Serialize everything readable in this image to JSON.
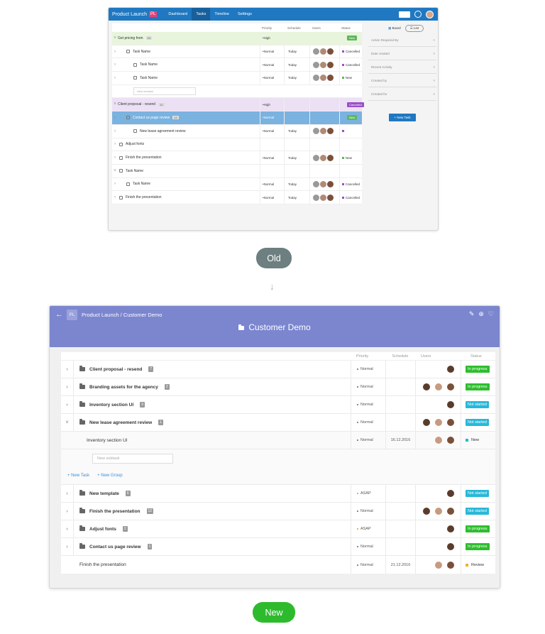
{
  "old": {
    "title": "Product Launch",
    "pl": "PL",
    "nav": [
      "Dashboard",
      "Tasks",
      "Timeline",
      "Settings"
    ],
    "columns": [
      "Priority",
      "Schedule",
      "Users",
      "Status"
    ],
    "side": {
      "board": "Board",
      "list": "List",
      "filters": [
        "Action Required By",
        "Date created",
        "Recent Activity",
        "Created by",
        "Created for"
      ],
      "new_task": "New Task"
    },
    "subtask_placeholder": "New subtask",
    "rows": [
      {
        "name": "Get pricing from",
        "count": "10",
        "priority": "High",
        "schedule": "",
        "status": "New",
        "style": "green",
        "level": 0
      },
      {
        "name": "Task Name",
        "priority": "Normal",
        "schedule": "Today",
        "status": "Cancelled",
        "level": 1
      },
      {
        "name": "Task Name",
        "priority": "Normal",
        "schedule": "Today",
        "status": "Cancelled",
        "level": 2
      },
      {
        "name": "Task Name",
        "priority": "Normal",
        "schedule": "Today",
        "status": "New",
        "level": 2
      },
      {
        "name": "Client proposal - resend",
        "count": "12",
        "priority": "High",
        "schedule": "",
        "status": "Cancelled",
        "style": "purple",
        "level": 0
      },
      {
        "name": "Contact us page review",
        "count": "12",
        "priority": "Normal",
        "schedule": "",
        "status": "New",
        "style": "blue",
        "level": 1
      },
      {
        "name": "New lease agreement review",
        "priority": "Normal",
        "schedule": "Today",
        "status": "",
        "level": 2
      },
      {
        "name": "Adjust fonts",
        "priority": "",
        "schedule": "",
        "status": "",
        "level": 0
      },
      {
        "name": "Finish the presentation",
        "priority": "Normal",
        "schedule": "Today",
        "status": "New",
        "level": 0
      },
      {
        "name": "Task Name",
        "priority": "",
        "schedule": "",
        "status": "",
        "level": 0
      },
      {
        "name": "Task Name",
        "priority": "Normal",
        "schedule": "Today",
        "status": "Cancelled",
        "level": 1
      },
      {
        "name": "Finish the presentation",
        "priority": "Normal",
        "schedule": "Today",
        "status": "Cancelled",
        "level": 0
      }
    ]
  },
  "labels": {
    "old": "Old",
    "new": "New"
  },
  "new": {
    "breadcrumb_project": "Product Launch",
    "breadcrumb_sep": "/",
    "breadcrumb_page": "Customer Demo",
    "pl": "PL",
    "title": "Customer Demo",
    "columns": [
      "Priority",
      "Schedule",
      "Users",
      "Status"
    ],
    "subtask_placeholder": "New subtask",
    "add_task": "+ New Task",
    "add_group": "+ New Group",
    "rows_top": [
      {
        "name": "Client proposal - resend",
        "count": "7",
        "priority": "Normal",
        "users": 1,
        "status": "In progress",
        "kind": "prog"
      },
      {
        "name": "Branding assets for the agency",
        "count": "2",
        "priority": "Normal",
        "users": 3,
        "status": "In progress",
        "kind": "prog"
      },
      {
        "name": "Inventory section UI",
        "count": "3",
        "priority": "Normal",
        "users": 1,
        "status": "Not started",
        "kind": "nots"
      },
      {
        "name": "New lease agreement review",
        "count": "1",
        "priority": "Normal",
        "users": 3,
        "status": "Not started",
        "kind": "nots"
      }
    ],
    "sub_row": {
      "name": "Inventory section UI",
      "priority": "Normal",
      "schedule": "16.12.2016",
      "users": 2,
      "status": "New",
      "color": "#28b8d8"
    },
    "rows_bottom": [
      {
        "name": "New template",
        "count": "6",
        "priority": "ASAP",
        "users": 1,
        "status": "Not started",
        "kind": "nots"
      },
      {
        "name": "Finish the presentation",
        "count": "12",
        "priority": "Normal",
        "users": 3,
        "status": "Not started",
        "kind": "nots"
      },
      {
        "name": "Adjust fonts",
        "count": "2",
        "priority": "ASAP",
        "users": 1,
        "status": "In progress",
        "kind": "prog"
      },
      {
        "name": "Contact us page review",
        "count": "1",
        "priority": "Normal",
        "users": 1,
        "status": "In progress",
        "kind": "prog"
      }
    ],
    "last_row": {
      "name": "Finish the presentation",
      "priority": "Normal",
      "schedule": "21.12.2016",
      "users": 2,
      "status": "Review",
      "color": "#f0b030"
    }
  }
}
